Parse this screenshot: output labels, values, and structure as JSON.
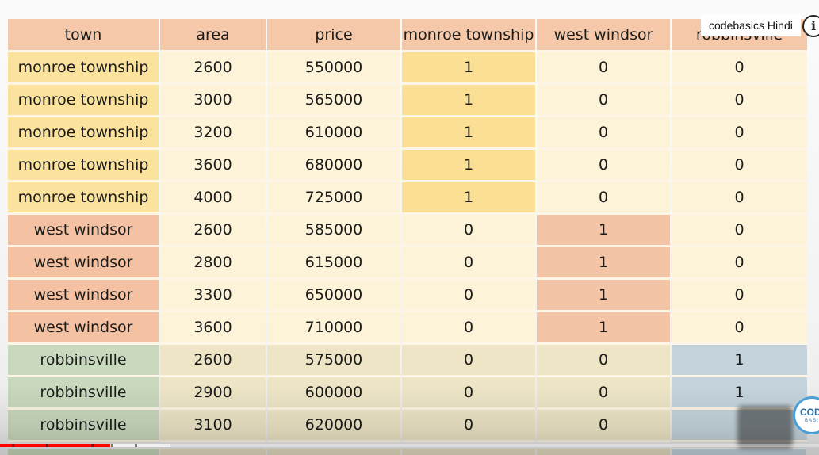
{
  "table": {
    "headers": [
      "town",
      "area",
      "price",
      "monroe township",
      "west windsor",
      "robbinsville"
    ],
    "rows": [
      {
        "group": "mt",
        "cells": [
          "monroe township",
          "2600",
          "550000",
          "1",
          "0",
          "0"
        ]
      },
      {
        "group": "mt",
        "cells": [
          "monroe township",
          "3000",
          "565000",
          "1",
          "0",
          "0"
        ]
      },
      {
        "group": "mt",
        "cells": [
          "monroe township",
          "3200",
          "610000",
          "1",
          "0",
          "0"
        ]
      },
      {
        "group": "mt",
        "cells": [
          "monroe township",
          "3600",
          "680000",
          "1",
          "0",
          "0"
        ]
      },
      {
        "group": "mt",
        "cells": [
          "monroe township",
          "4000",
          "725000",
          "1",
          "0",
          "0"
        ]
      },
      {
        "group": "ww",
        "cells": [
          "west windsor",
          "2600",
          "585000",
          "0",
          "1",
          "0"
        ]
      },
      {
        "group": "ww",
        "cells": [
          "west windsor",
          "2800",
          "615000",
          "0",
          "1",
          "0"
        ]
      },
      {
        "group": "ww",
        "cells": [
          "west windsor",
          "3300",
          "650000",
          "0",
          "1",
          "0"
        ]
      },
      {
        "group": "ww",
        "cells": [
          "west windsor",
          "3600",
          "710000",
          "0",
          "1",
          "0"
        ]
      },
      {
        "group": "rb",
        "cells": [
          "robbinsville",
          "2600",
          "575000",
          "0",
          "0",
          "1"
        ]
      },
      {
        "group": "rb",
        "cells": [
          "robbinsville",
          "2900",
          "600000",
          "0",
          "0",
          "1"
        ]
      },
      {
        "group": "rb",
        "cells": [
          "robbinsville",
          "3100",
          "620000",
          "0",
          "0",
          ""
        ]
      }
    ]
  },
  "overlay": {
    "channel_name": "codebasics Hindi",
    "info_symbol": "i",
    "logo_text": "COD",
    "logo_sub": "BASI"
  },
  "player": {
    "progress_fraction": 0.135
  },
  "colors": {
    "header_bg": "#f4c8a8",
    "monroe_highlight": "#fbdf94",
    "west_windsor_highlight": "#f4c4a6",
    "robbinsville_highlight": "#c5d4dc",
    "progress_red": "#ff0000"
  }
}
